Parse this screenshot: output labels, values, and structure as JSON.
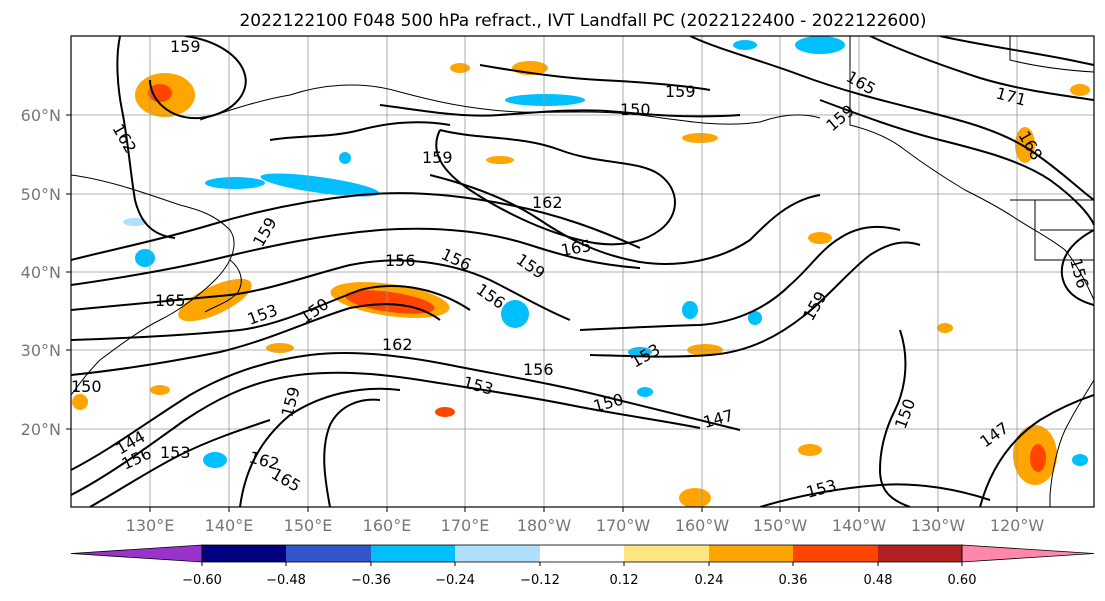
{
  "title": "2022122100 F048 500 hPa refract., IVT Landfall PC (2022122400 - 2022122600)",
  "lon_labels": [
    "130°E",
    "140°E",
    "150°E",
    "160°E",
    "170°E",
    "180°W",
    "170°W",
    "160°W",
    "150°W",
    "140°W",
    "130°W",
    "120°W"
  ],
  "lat_labels": [
    "60°N",
    "50°N",
    "40°N",
    "30°N",
    "20°N"
  ],
  "colorbar": {
    "colors": [
      "#9933cc",
      "#000080",
      "#3355cc",
      "#00bfff",
      "#b0e0ff",
      "#ffffff",
      "#ffe680",
      "#ffa500",
      "#ff4500",
      "#b22222",
      "#ff88aa"
    ],
    "tick_labels": [
      "−0.60",
      "−0.48",
      "−0.36",
      "−0.24",
      "−0.12",
      "0.12",
      "0.24",
      "0.36",
      "0.48",
      "0.60"
    ]
  },
  "contour_labels": [
    "159",
    "162",
    "159",
    "150",
    "159",
    "165",
    "171",
    "168",
    "159",
    "159",
    "162",
    "165",
    "156",
    "156",
    "159",
    "165",
    "153",
    "150",
    "156",
    "162",
    "159",
    "153",
    "156",
    "153",
    "150",
    "147",
    "159",
    "150",
    "147",
    "144",
    "156",
    "153",
    "162",
    "165",
    "153",
    "150",
    "156"
  ]
}
